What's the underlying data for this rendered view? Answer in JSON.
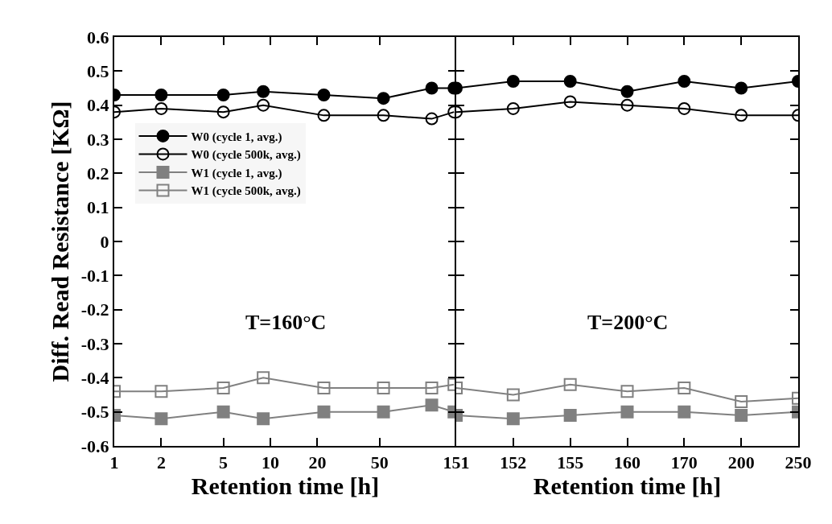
{
  "chart_data": [
    {
      "type": "line",
      "xlabel": "Retention time [h]",
      "ylabel": "Diff. Read Resistance [KΩ]",
      "annotations": [
        "T=160°C"
      ],
      "log": "x",
      "legend": "top left",
      "x": [
        1,
        2,
        5,
        9,
        22,
        53,
        108,
        150
      ],
      "xlim": [
        1,
        155
      ],
      "xticks": [
        1,
        2,
        5,
        10,
        20,
        50
      ],
      "ylim": [
        -0.6,
        0.6
      ],
      "yticks": [
        -0.6,
        -0.5,
        -0.4,
        -0.3,
        -0.2,
        -0.1,
        0,
        0.1,
        0.2,
        0.3,
        0.4,
        0.5,
        0.6
      ],
      "grid": false,
      "series": [
        {
          "name": "W0 (cycle 1, avg.)",
          "color": "#000000",
          "marker": "circle",
          "values": [
            0.43,
            0.43,
            0.43,
            0.44,
            0.43,
            0.42,
            0.45,
            0.45
          ]
        },
        {
          "name": "W0 (cycle 500k, avg.)",
          "color": "#000000",
          "marker": "circle-open",
          "values": [
            0.38,
            0.39,
            0.38,
            0.4,
            0.37,
            0.37,
            0.36,
            0.38
          ]
        },
        {
          "name": "W1 (cycle 1, avg.)",
          "color": "#808080",
          "marker": "square",
          "values": [
            -0.51,
            -0.52,
            -0.5,
            -0.52,
            -0.5,
            -0.5,
            -0.48,
            -0.5
          ]
        },
        {
          "name": "W1 (cycle 500k, avg.)",
          "color": "#808080",
          "marker": "square-open",
          "values": [
            -0.44,
            -0.44,
            -0.43,
            -0.4,
            -0.43,
            -0.43,
            -0.43,
            -0.42
          ]
        }
      ]
    },
    {
      "type": "line",
      "xlabel": "Retention time [h]",
      "annotations": [
        "T=200°C"
      ],
      "tick_labels": "x",
      "categories": [
        "151",
        "152",
        "155",
        "160",
        "170",
        "200",
        "250"
      ],
      "ylim": [
        -0.6,
        0.6
      ],
      "yticks": [
        -0.6,
        -0.5,
        -0.4,
        -0.3,
        -0.2,
        -0.1,
        0,
        0.1,
        0.2,
        0.3,
        0.4,
        0.5,
        0.6
      ],
      "grid": false,
      "series": [
        {
          "color": "#000000",
          "marker": "circle",
          "values": [
            0.45,
            0.47,
            0.47,
            0.44,
            0.47,
            0.45,
            0.47
          ]
        },
        {
          "color": "#000000",
          "marker": "circle-open",
          "values": [
            0.38,
            0.39,
            0.41,
            0.4,
            0.39,
            0.37,
            0.37
          ]
        },
        {
          "color": "#808080",
          "marker": "square",
          "values": [
            -0.51,
            -0.52,
            -0.51,
            -0.5,
            -0.5,
            -0.51,
            -0.5
          ]
        },
        {
          "color": "#808080",
          "marker": "square-open",
          "values": [
            -0.43,
            -0.45,
            -0.42,
            -0.44,
            -0.43,
            -0.47,
            -0.46
          ]
        }
      ]
    }
  ]
}
